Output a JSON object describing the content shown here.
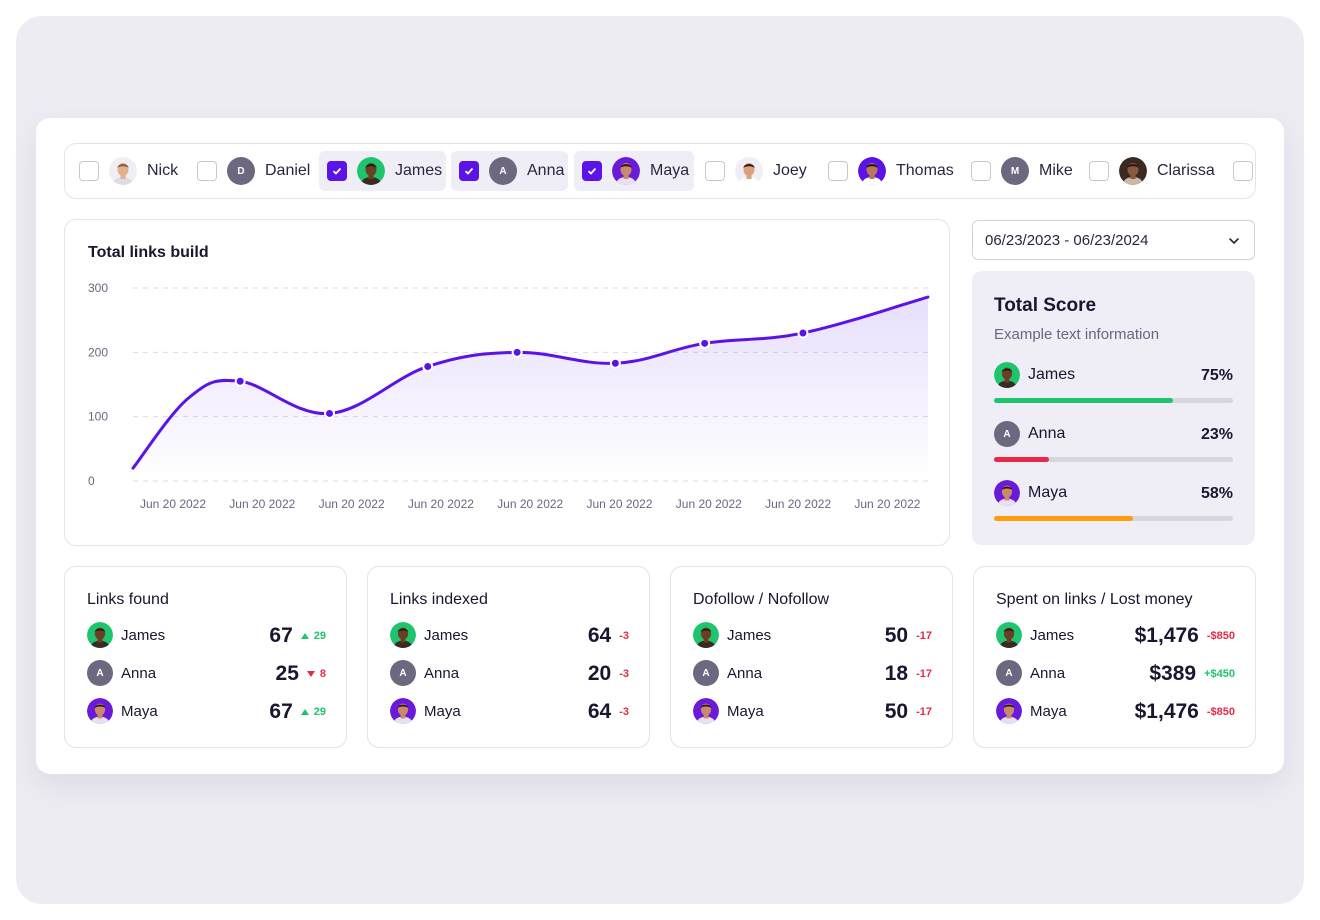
{
  "users": [
    {
      "name": "Nick",
      "selected": false,
      "avatar": "photo-nick"
    },
    {
      "name": "Daniel",
      "selected": false,
      "avatar": "letter",
      "initial": "D"
    },
    {
      "name": "James",
      "selected": true,
      "avatar": "photo-james"
    },
    {
      "name": "Anna",
      "selected": true,
      "avatar": "letter",
      "initial": "A"
    },
    {
      "name": "Maya",
      "selected": true,
      "avatar": "photo-maya"
    },
    {
      "name": "Joey",
      "selected": false,
      "avatar": "photo-joey"
    },
    {
      "name": "Thomas",
      "selected": false,
      "avatar": "photo-thomas"
    },
    {
      "name": "Mike",
      "selected": false,
      "avatar": "letter",
      "initial": "M"
    },
    {
      "name": "Clarissa",
      "selected": false,
      "avatar": "photo-clarissa"
    }
  ],
  "chart": {
    "title": "Total links build",
    "chart_data": {
      "type": "area",
      "title": "Total links build",
      "x": [
        "Jun 20 2022",
        "Jun 20 2022",
        "Jun 20 2022",
        "Jun 20 2022",
        "Jun 20 2022",
        "Jun 20 2022",
        "Jun 20 2022",
        "Jun 20 2022",
        "Jun 20 2022"
      ],
      "series": [
        {
          "name": "Total links",
          "points": [
            {
              "x": 0,
              "y": 20
            },
            {
              "x": 0.63,
              "y": 130
            },
            {
              "x": 1.2,
              "y": 155
            },
            {
              "x": 2.2,
              "y": 105
            },
            {
              "x": 3.3,
              "y": 178
            },
            {
              "x": 4.3,
              "y": 200
            },
            {
              "x": 5.4,
              "y": 183
            },
            {
              "x": 6.4,
              "y": 214
            },
            {
              "x": 7.5,
              "y": 230
            },
            {
              "x": 8.9,
              "y": 286
            }
          ]
        }
      ],
      "markers_at": [
        1.2,
        2.2,
        3.3,
        4.3,
        5.4,
        6.4,
        7.5
      ],
      "ylim": [
        0,
        300
      ],
      "yticks": [
        0,
        100,
        200,
        300
      ],
      "grid": true
    }
  },
  "date_range": "06/23/2023 - 06/23/2024",
  "score": {
    "title": "Total Score",
    "subtitle": "Example text information",
    "rows": [
      {
        "name": "James",
        "pct_label": "75%",
        "pct": 75,
        "color": "#1ec46e"
      },
      {
        "name": "Anna",
        "pct_label": "23%",
        "pct": 23,
        "color": "#e8294a"
      },
      {
        "name": "Maya",
        "pct_label": "58%",
        "pct": 58,
        "color": "#ff9d0a"
      }
    ]
  },
  "stats": [
    {
      "title": "Links found",
      "rows": [
        {
          "name": "James",
          "value": "67",
          "delta": "29",
          "dir": "up",
          "arrow": true
        },
        {
          "name": "Anna",
          "value": "25",
          "delta": "8",
          "dir": "down",
          "arrow": true
        },
        {
          "name": "Maya",
          "value": "67",
          "delta": "29",
          "dir": "up",
          "arrow": true
        }
      ]
    },
    {
      "title": "Links indexed",
      "rows": [
        {
          "name": "James",
          "value": "64",
          "delta": "-3",
          "dir": "down",
          "arrow": false
        },
        {
          "name": "Anna",
          "value": "20",
          "delta": "-3",
          "dir": "down",
          "arrow": false
        },
        {
          "name": "Maya",
          "value": "64",
          "delta": "-3",
          "dir": "down",
          "arrow": false
        }
      ]
    },
    {
      "title": "Dofollow / Nofollow",
      "rows": [
        {
          "name": "James",
          "value": "50",
          "delta": "-17",
          "dir": "down",
          "arrow": false
        },
        {
          "name": "Anna",
          "value": "18",
          "delta": "-17",
          "dir": "down",
          "arrow": false
        },
        {
          "name": "Maya",
          "value": "50",
          "delta": "-17",
          "dir": "down",
          "arrow": false
        }
      ]
    },
    {
      "title": "Spent on links / Lost money",
      "rows": [
        {
          "name": "James",
          "value": "$1,476",
          "delta": "-$850",
          "dir": "down",
          "arrow": false
        },
        {
          "name": "Anna",
          "value": "$389",
          "delta": "+$450",
          "dir": "up",
          "arrow": false
        },
        {
          "name": "Maya",
          "value": "$1,476",
          "delta": "-$850",
          "dir": "down",
          "arrow": false
        }
      ]
    }
  ],
  "colors": {
    "accent": "#5b14e8",
    "up": "#1ec46e",
    "down": "#e8294a",
    "orange": "#ff9d0a"
  }
}
